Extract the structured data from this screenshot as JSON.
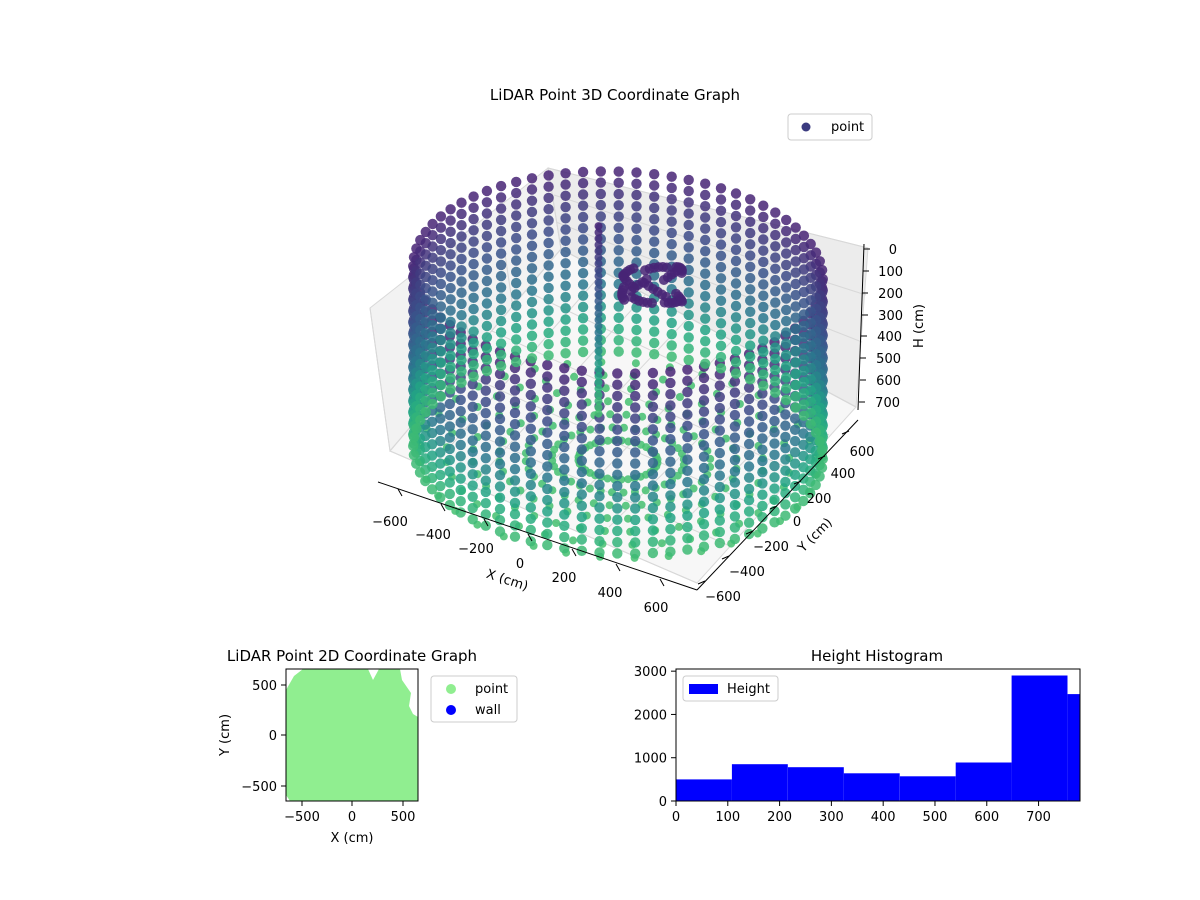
{
  "figure": {
    "background": "#ffffff"
  },
  "colors": {
    "viridis_dark": "#482475",
    "viridis_mid": "#2a788e",
    "viridis_light": "#3fbc73",
    "point_2d": "#90ee90",
    "wall_2d": "#0000ff",
    "histogram": "#0000ff"
  },
  "chart_data": [
    {
      "type": "scatter",
      "projection": "3d",
      "title": "LiDAR Point 3D Coordinate Graph",
      "xlabel": "X (cm)",
      "ylabel": "Y (cm)",
      "zlabel": "H (cm)",
      "xticks": [
        "−600",
        "−400",
        "−200",
        "0",
        "200",
        "400",
        "600"
      ],
      "yticks": [
        "−600",
        "−400",
        "−200",
        "0",
        "200",
        "400",
        "600"
      ],
      "zticks": [
        "0",
        "100",
        "200",
        "300",
        "400",
        "500",
        "600",
        "700"
      ],
      "xlim": [
        -650,
        650
      ],
      "ylim": [
        -650,
        650
      ],
      "zlim": [
        0,
        750
      ],
      "z_inverted": true,
      "legend": [
        {
          "label": "point",
          "color": "#3b3b80"
        }
      ],
      "legend_position": "upper right",
      "colormap": "viridis",
      "shape": "cylindrical wall of points, radius ~620 cm, height 0-750 cm, with a vertical pole and a cluster near the top center",
      "wall_radius": 620,
      "wall_height": 750
    },
    {
      "type": "scatter",
      "title": "LiDAR Point 2D Coordinate Graph",
      "xlabel": "X (cm)",
      "ylabel": "Y (cm)",
      "xticks": [
        "−500",
        "0",
        "500"
      ],
      "yticks": [
        "500",
        "0",
        "−500"
      ],
      "xlim": [
        -650,
        650
      ],
      "ylim": [
        -650,
        650
      ],
      "series": [
        {
          "name": "point",
          "color": "#90ee90"
        },
        {
          "name": "wall",
          "color": "#0000ff"
        }
      ],
      "legend_position": "outside upper right"
    },
    {
      "type": "bar",
      "title": "Height Histogram",
      "xlabel": "",
      "ylabel": "",
      "xticks": [
        "0",
        "100",
        "200",
        "300",
        "400",
        "500",
        "600",
        "700"
      ],
      "yticks": [
        "0",
        "1000",
        "2000",
        "3000"
      ],
      "xlim": [
        0,
        780
      ],
      "ylim": [
        0,
        3050
      ],
      "bin_edges": [
        0,
        108,
        216,
        324,
        432,
        540,
        648,
        756,
        780
      ],
      "counts": [
        500,
        850,
        780,
        640,
        570,
        890,
        2900,
        2470
      ],
      "series": [
        {
          "name": "Height"
        }
      ],
      "legend_position": "upper left"
    }
  ]
}
